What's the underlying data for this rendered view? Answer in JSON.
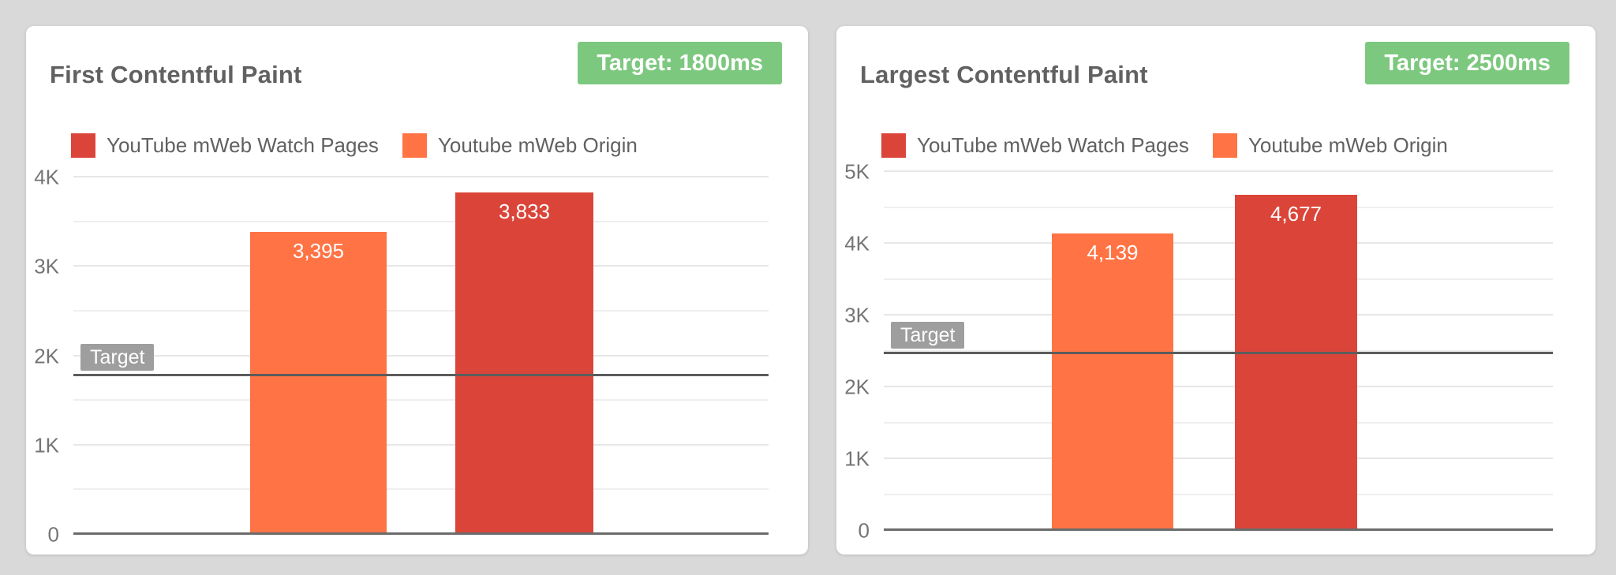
{
  "colors": {
    "red": "#db4539",
    "orange": "#ff7344",
    "green": "#7dc87f",
    "target_chip_gray": "#9e9e9e",
    "title_text": "#616161",
    "tick_text": "#757575"
  },
  "chart_data": [
    {
      "type": "bar",
      "title": "First Contentful Paint",
      "target_badge": "Target: 1800ms",
      "target_line_label": "Target",
      "target_ms": 1800,
      "ylim": [
        0,
        4000
      ],
      "tick_step": 1000,
      "minor_step": 500,
      "yticks": [
        0,
        1000,
        2000,
        3000,
        4000
      ],
      "ytick_labels": [
        "0",
        "1K",
        "2K",
        "3K",
        "4K"
      ],
      "grid": true,
      "legend_position": "top-left",
      "legend": [
        {
          "name": "YouTube mWeb Watch Pages",
          "color_key": "red"
        },
        {
          "name": "Youtube mWeb Origin",
          "color_key": "orange"
        }
      ],
      "series": [
        {
          "name": "Youtube mWeb Origin",
          "value": 3395,
          "label": "3,395",
          "color_key": "orange"
        },
        {
          "name": "YouTube mWeb Watch Pages",
          "value": 3833,
          "label": "3,833",
          "color_key": "red"
        }
      ]
    },
    {
      "type": "bar",
      "title": "Largest Contentful Paint",
      "target_badge": "Target: 2500ms",
      "target_line_label": "Target",
      "target_ms": 2500,
      "ylim": [
        0,
        5000
      ],
      "tick_step": 1000,
      "minor_step": 500,
      "yticks": [
        0,
        1000,
        2000,
        3000,
        4000,
        5000
      ],
      "ytick_labels": [
        "0",
        "1K",
        "2K",
        "3K",
        "4K",
        "5K"
      ],
      "grid": true,
      "legend_position": "top-left",
      "legend": [
        {
          "name": "YouTube mWeb Watch Pages",
          "color_key": "red"
        },
        {
          "name": "Youtube mWeb Origin",
          "color_key": "orange"
        }
      ],
      "series": [
        {
          "name": "Youtube mWeb Origin",
          "value": 4139,
          "label": "4,139",
          "color_key": "orange"
        },
        {
          "name": "YouTube mWeb Watch Pages",
          "value": 4677,
          "label": "4,677",
          "color_key": "red"
        }
      ]
    }
  ]
}
